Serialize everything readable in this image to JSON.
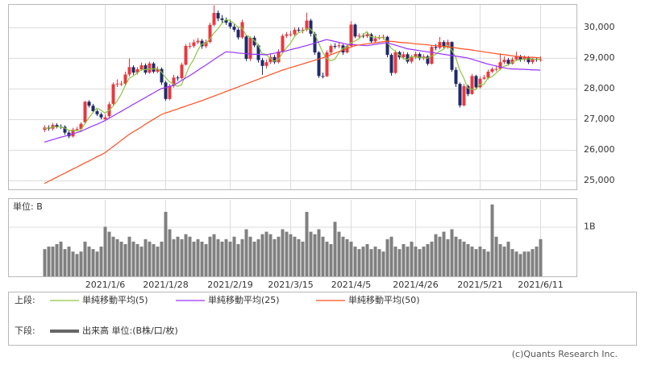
{
  "chart_data": [
    {
      "type": "candlestick",
      "legend_title": "上段:",
      "up_color": "#e8383d",
      "down_color": "#1f2a6b",
      "ylim": [
        24710,
        30760
      ],
      "yticks": [
        {
          "value": 25000,
          "label": "25,000"
        },
        {
          "value": 26000,
          "label": "26,000"
        },
        {
          "value": 27000,
          "label": "27,000"
        },
        {
          "value": 28000,
          "label": "28,000"
        },
        {
          "value": 29000,
          "label": "29,000"
        },
        {
          "value": 30000,
          "label": "30,000"
        }
      ],
      "grid": true,
      "open": [
        26650,
        26730,
        26690,
        26810,
        26760,
        26750,
        26560,
        26440,
        26660,
        26680,
        26900,
        27570,
        27440,
        27260,
        27160,
        27000,
        27100,
        27500,
        28140,
        28160,
        28160,
        28460,
        28700,
        28520,
        28630,
        28760,
        28520,
        28820,
        28550,
        28640,
        28200,
        27660,
        28090,
        28360,
        28340,
        28780,
        29390,
        29390,
        29510,
        29560,
        29380,
        29520,
        30080,
        30470,
        30290,
        30240,
        30150,
        30020,
        29920,
        29670,
        29700,
        28970,
        29660,
        29410,
        28930,
        28740,
        28860,
        29030,
        28860,
        29210,
        29720,
        29770,
        29770,
        29920,
        29910,
        29920,
        30220,
        29790,
        29180,
        28410,
        28400,
        29180,
        29390,
        29380,
        29410,
        29180,
        29390,
        30090,
        29700,
        29730,
        29710,
        29770,
        29540,
        29640,
        29680,
        29690,
        29100,
        28510,
        29190,
        29020,
        29120,
        28880,
        29020,
        29130,
        28990,
        29050,
        28810,
        29360,
        29330,
        29520,
        29360,
        29520,
        28610,
        28150,
        27450,
        28080,
        27820,
        28410,
        28040,
        28320,
        28360,
        28550,
        28640,
        28640,
        28860,
        28940,
        28810,
        28950,
        29060,
        28940,
        29020,
        28860,
        28960,
        28950
      ],
      "high": [
        26800,
        26800,
        26880,
        26870,
        26830,
        26800,
        26620,
        26720,
        26750,
        26900,
        27600,
        27620,
        27500,
        27320,
        27220,
        27150,
        27560,
        28200,
        28300,
        28250,
        28550,
        28980,
        28760,
        28700,
        28850,
        28820,
        28880,
        28870,
        28720,
        28690,
        28250,
        28150,
        28450,
        28420,
        28850,
        29450,
        29500,
        29600,
        29650,
        29620,
        29600,
        30150,
        30720,
        30550,
        30400,
        30320,
        30250,
        30100,
        29980,
        30250,
        29750,
        29700,
        29720,
        29450,
        29000,
        28950,
        29120,
        29100,
        29280,
        29780,
        29850,
        29880,
        30000,
        30000,
        30000,
        30480,
        30280,
        29850,
        29220,
        28520,
        29250,
        29450,
        29480,
        29500,
        29450,
        29450,
        30200,
        30120,
        29800,
        29800,
        29850,
        29820,
        29720,
        29750,
        29760,
        29720,
        29150,
        29250,
        29230,
        29200,
        29180,
        29100,
        29200,
        29180,
        29120,
        29100,
        29420,
        29450,
        29680,
        29580,
        29600,
        29540,
        28700,
        28200,
        28150,
        28130,
        28480,
        28450,
        28400,
        28450,
        28620,
        28700,
        28750,
        29150,
        29050,
        29000,
        29020,
        29200,
        29100,
        29080,
        29060,
        29020,
        29020,
        29050
      ],
      "low": [
        26580,
        26620,
        26630,
        26700,
        26680,
        26490,
        26380,
        26400,
        26600,
        26620,
        26850,
        27380,
        27200,
        27100,
        27000,
        26950,
        27050,
        27450,
        28050,
        28080,
        28100,
        28400,
        28450,
        28460,
        28580,
        28460,
        28480,
        28500,
        28500,
        28120,
        27600,
        27620,
        28030,
        28250,
        28300,
        28750,
        29300,
        29330,
        29450,
        29300,
        29320,
        29480,
        30030,
        30200,
        30150,
        30080,
        29950,
        29850,
        29600,
        29620,
        28900,
        28900,
        29350,
        28850,
        28450,
        28650,
        28800,
        28800,
        28820,
        29150,
        29650,
        29700,
        29720,
        29850,
        29800,
        29870,
        29700,
        29100,
        28350,
        28330,
        28380,
        29100,
        29300,
        29320,
        29100,
        29150,
        29350,
        29650,
        29650,
        29650,
        29650,
        29480,
        29500,
        29600,
        29600,
        29020,
        28420,
        28480,
        28950,
        28950,
        28820,
        28820,
        28970,
        28920,
        28930,
        28750,
        28780,
        29250,
        29280,
        29300,
        29300,
        28550,
        28050,
        27380,
        27420,
        27750,
        27800,
        27980,
        28000,
        28280,
        28300,
        28500,
        28560,
        28600,
        28800,
        28750,
        28780,
        28900,
        28880,
        28880,
        28800,
        28800,
        28880,
        28880
      ],
      "close": [
        26730,
        26690,
        26810,
        26760,
        26750,
        26560,
        26440,
        26660,
        26680,
        26850,
        27570,
        27440,
        27260,
        27160,
        27060,
        27060,
        27490,
        28140,
        28160,
        28160,
        28460,
        28700,
        28520,
        28630,
        28760,
        28520,
        28820,
        28550,
        28640,
        28200,
        27660,
        28090,
        28360,
        28340,
        28780,
        29390,
        29390,
        29510,
        29560,
        29380,
        29520,
        30080,
        30470,
        30290,
        30240,
        30150,
        30020,
        29920,
        29670,
        30170,
        28970,
        29660,
        29410,
        28930,
        28740,
        28860,
        29030,
        28860,
        29210,
        29720,
        29770,
        29770,
        29920,
        29910,
        29920,
        30220,
        29790,
        29180,
        28410,
        28400,
        29180,
        29390,
        29380,
        29410,
        29180,
        29390,
        30090,
        29700,
        29730,
        29710,
        29770,
        29540,
        29640,
        29680,
        29690,
        29100,
        28510,
        29190,
        29020,
        29120,
        28880,
        29020,
        29130,
        28990,
        29050,
        28810,
        29360,
        29330,
        29520,
        29360,
        29520,
        28610,
        28150,
        27450,
        28080,
        27820,
        28410,
        28040,
        28320,
        28360,
        28550,
        28640,
        28640,
        28860,
        28940,
        28810,
        28950,
        29060,
        28940,
        29020,
        28860,
        28960,
        28950,
        28950
      ],
      "series": [
        {
          "name": "単純移動平均(5)",
          "color": "#8dc63f",
          "values": [
            26700,
            26710,
            26740,
            26750,
            26750,
            26710,
            26640,
            26630,
            26620,
            26640,
            26840,
            27040,
            27210,
            27360,
            27300,
            27200,
            27280,
            27420,
            27580,
            27800,
            28080,
            28330,
            28410,
            28500,
            28610,
            28620,
            28640,
            28640,
            28660,
            28550,
            28370,
            28230,
            28150,
            28070,
            28120,
            28420,
            28730,
            28940,
            29230,
            29450,
            29470,
            29610,
            29800,
            29940,
            30120,
            30250,
            30230,
            30130,
            30010,
            29990,
            29750,
            29680,
            29580,
            29430,
            29140,
            29120,
            28990,
            28890,
            28940,
            29140,
            29320,
            29470,
            29690,
            29820,
            29860,
            29950,
            29950,
            29800,
            29500,
            29200,
            28990,
            28910,
            28950,
            29150,
            29310,
            29350,
            29490,
            29550,
            29620,
            29740,
            29860,
            29690,
            29680,
            29670,
            29660,
            29530,
            29320,
            29230,
            29100,
            28990,
            28940,
            29050,
            29030,
            29020,
            29010,
            28990,
            29060,
            29110,
            29210,
            29280,
            29420,
            29270,
            29040,
            28620,
            28360,
            28020,
            27980,
            27960,
            28140,
            28130,
            28340,
            28380,
            28500,
            28610,
            28730,
            28770,
            28850,
            28920,
            28940,
            28960,
            28970,
            28970,
            28950,
            28950
          ]
        },
        {
          "name": "単純移動平均(25)",
          "color": "#9933ff",
          "values": [
            26250,
            26290,
            26330,
            26370,
            26410,
            26440,
            26480,
            26520,
            26560,
            26600,
            26660,
            26720,
            26780,
            26830,
            26890,
            26950,
            27030,
            27100,
            27180,
            27250,
            27330,
            27400,
            27480,
            27550,
            27630,
            27700,
            27780,
            27850,
            27930,
            28000,
            28030,
            28070,
            28100,
            28180,
            28260,
            28340,
            28420,
            28500,
            28590,
            28680,
            28760,
            28850,
            28940,
            29030,
            29110,
            29200,
            29190,
            29180,
            29160,
            29150,
            29140,
            29130,
            29120,
            29120,
            29110,
            29100,
            29130,
            29150,
            29180,
            29200,
            29230,
            29270,
            29300,
            29330,
            29370,
            29400,
            29440,
            29480,
            29520,
            29560,
            29600,
            29570,
            29540,
            29510,
            29480,
            29450,
            29440,
            29430,
            29420,
            29410,
            29400,
            29420,
            29440,
            29460,
            29480,
            29500,
            29460,
            29420,
            29380,
            29340,
            29300,
            29280,
            29260,
            29240,
            29220,
            29200,
            29180,
            29160,
            29140,
            29120,
            29100,
            29080,
            29060,
            29040,
            29020,
            29000,
            28960,
            28920,
            28880,
            28840,
            28800,
            28770,
            28740,
            28710,
            28680,
            28650,
            28640,
            28640,
            28630,
            28630,
            28620,
            28610,
            28610,
            28600
          ]
        },
        {
          "name": "単純移動平均(50)",
          "color": "#ff4f1f",
          "values": [
            24900,
            24970,
            25030,
            25100,
            25170,
            25230,
            25300,
            25370,
            25430,
            25500,
            25570,
            25630,
            25700,
            25770,
            25830,
            25900,
            26000,
            26100,
            26200,
            26300,
            26400,
            26500,
            26580,
            26660,
            26740,
            26830,
            26910,
            26990,
            27070,
            27150,
            27200,
            27240,
            27290,
            27330,
            27380,
            27420,
            27470,
            27510,
            27560,
            27600,
            27650,
            27700,
            27750,
            27800,
            27850,
            27900,
            27950,
            28000,
            28050,
            28100,
            28150,
            28200,
            28250,
            28300,
            28350,
            28400,
            28450,
            28500,
            28550,
            28600,
            28640,
            28680,
            28720,
            28760,
            28800,
            28840,
            28880,
            28920,
            28960,
            29000,
            29050,
            29100,
            29150,
            29200,
            29250,
            29300,
            29350,
            29400,
            29420,
            29440,
            29460,
            29480,
            29490,
            29510,
            29530,
            29550,
            29540,
            29530,
            29510,
            29500,
            29490,
            29480,
            29460,
            29450,
            29440,
            29430,
            29410,
            29400,
            29390,
            29380,
            29360,
            29350,
            29330,
            29310,
            29290,
            29280,
            29260,
            29240,
            29220,
            29200,
            29180,
            29160,
            29140,
            29120,
            29110,
            29090,
            29070,
            29050,
            29040,
            29030,
            29020,
            29020,
            29010,
            29000
          ]
        }
      ]
    },
    {
      "type": "bar",
      "legend_title": "下段:",
      "unit_label": "単位: B",
      "name": "出来高 単位:(B株/口/枚)",
      "color": "#808080",
      "ylim": [
        0,
        1.56
      ],
      "yticks": [
        {
          "value": 1,
          "label": "1B"
        }
      ],
      "categories": [
        null,
        null,
        null,
        null,
        null,
        null,
        null,
        null,
        null,
        null,
        null,
        null,
        null,
        null,
        null,
        "2021/1/6",
        null,
        null,
        null,
        null,
        null,
        null,
        null,
        null,
        null,
        null,
        null,
        null,
        null,
        null,
        "2021/1/28",
        null,
        null,
        null,
        null,
        null,
        null,
        null,
        null,
        null,
        null,
        null,
        null,
        null,
        null,
        null,
        "2021/2/19",
        null,
        null,
        null,
        null,
        null,
        null,
        null,
        null,
        null,
        null,
        null,
        null,
        null,
        null,
        "2021/3/15",
        null,
        null,
        null,
        null,
        null,
        null,
        null,
        null,
        null,
        null,
        null,
        null,
        null,
        null,
        "2021/4/5",
        null,
        null,
        null,
        null,
        null,
        null,
        null,
        null,
        null,
        null,
        null,
        null,
        null,
        null,
        null,
        "2021/4/26",
        null,
        null,
        null,
        null,
        null,
        null,
        null,
        null,
        null,
        null,
        null,
        null,
        null,
        null,
        null,
        "2021/5/21",
        null,
        null,
        null,
        null,
        null,
        null,
        null,
        null,
        null,
        null,
        null,
        null,
        null,
        null,
        "2021/6/11"
      ],
      "values": [
        0.55,
        0.6,
        0.6,
        0.65,
        0.7,
        0.55,
        0.6,
        0.5,
        0.45,
        0.5,
        0.7,
        0.6,
        0.55,
        0.5,
        0.6,
        1.0,
        0.9,
        0.8,
        0.75,
        0.7,
        0.65,
        0.8,
        0.7,
        0.65,
        0.6,
        0.75,
        0.7,
        0.65,
        0.6,
        0.7,
        1.3,
        0.95,
        0.75,
        0.8,
        0.75,
        0.85,
        0.8,
        0.7,
        0.75,
        0.7,
        0.65,
        0.8,
        0.85,
        0.75,
        0.7,
        0.75,
        0.7,
        0.8,
        0.65,
        0.75,
        0.95,
        0.8,
        0.7,
        0.75,
        0.85,
        0.9,
        0.85,
        0.75,
        0.8,
        0.95,
        0.9,
        0.85,
        0.8,
        0.75,
        0.7,
        1.3,
        0.9,
        0.85,
        0.95,
        0.8,
        0.7,
        0.65,
        1.1,
        0.9,
        0.8,
        0.75,
        0.7,
        0.6,
        0.55,
        0.6,
        0.65,
        0.55,
        0.6,
        0.55,
        0.5,
        0.75,
        0.8,
        0.6,
        0.55,
        0.65,
        0.6,
        0.7,
        0.6,
        0.55,
        0.6,
        0.65,
        0.7,
        0.85,
        0.8,
        0.9,
        0.75,
        0.95,
        0.8,
        0.75,
        0.7,
        0.65,
        0.6,
        0.55,
        0.6,
        0.55,
        0.5,
        1.45,
        0.8,
        0.65,
        0.6,
        0.7,
        0.55,
        0.5,
        0.45,
        0.5,
        0.5,
        0.55,
        0.6,
        0.75
      ]
    },
    {
      "credit": "(c)Quants Research Inc."
    }
  ]
}
